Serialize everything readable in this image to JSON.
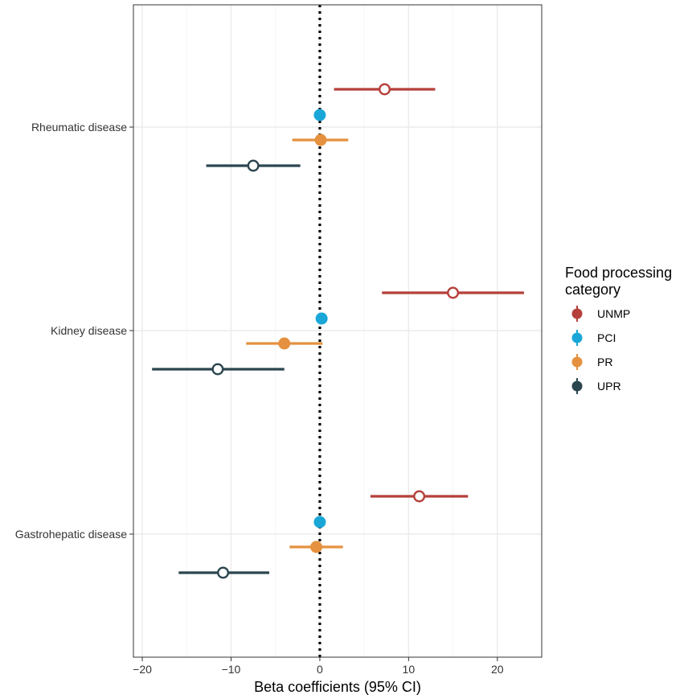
{
  "chart_data": {
    "type": "forest",
    "title": "",
    "xlabel": "Beta coefficients (95% CI)",
    "ylabel": "",
    "xlim": [
      -21,
      25
    ],
    "x_ticks": [
      -20,
      -10,
      0,
      10,
      20
    ],
    "reference_line": 0,
    "groups": [
      "Rheumatic disease",
      "Kidney disease",
      "Gastrohepatic disease"
    ],
    "legend": {
      "title_line1": "Food processing",
      "title_line2": "category",
      "position": "right"
    },
    "series": [
      {
        "name": "UNMP",
        "color": "#B5403A",
        "filled": false,
        "points": [
          {
            "group": "Rheumatic disease",
            "estimate": 7.3,
            "lower": 1.6,
            "upper": 13.0
          },
          {
            "group": "Kidney disease",
            "estimate": 15.0,
            "lower": 7.0,
            "upper": 23.0
          },
          {
            "group": "Gastrohepatic disease",
            "estimate": 11.2,
            "lower": 5.7,
            "upper": 16.7
          }
        ]
      },
      {
        "name": "PCI",
        "color": "#1AA7D8",
        "filled": true,
        "points": [
          {
            "group": "Rheumatic disease",
            "estimate": 0.0,
            "lower": 0.0,
            "upper": 0.0
          },
          {
            "group": "Kidney disease",
            "estimate": 0.2,
            "lower": 0.2,
            "upper": 0.2
          },
          {
            "group": "Gastrohepatic disease",
            "estimate": 0.0,
            "lower": 0.0,
            "upper": 0.0
          }
        ]
      },
      {
        "name": "PR",
        "color": "#E5913F",
        "filled": true,
        "points": [
          {
            "group": "Rheumatic disease",
            "estimate": 0.1,
            "lower": -3.1,
            "upper": 3.2
          },
          {
            "group": "Kidney disease",
            "estimate": -4.0,
            "lower": -8.3,
            "upper": 0.3
          },
          {
            "group": "Gastrohepatic disease",
            "estimate": -0.4,
            "lower": -3.4,
            "upper": 2.6
          }
        ]
      },
      {
        "name": "UPR",
        "color": "#2C4650",
        "filled": false,
        "points": [
          {
            "group": "Rheumatic disease",
            "estimate": -7.5,
            "lower": -12.8,
            "upper": -2.2
          },
          {
            "group": "Kidney disease",
            "estimate": -11.5,
            "lower": -18.9,
            "upper": -4.0
          },
          {
            "group": "Gastrohepatic disease",
            "estimate": -10.9,
            "lower": -15.9,
            "upper": -5.7
          }
        ]
      }
    ]
  }
}
